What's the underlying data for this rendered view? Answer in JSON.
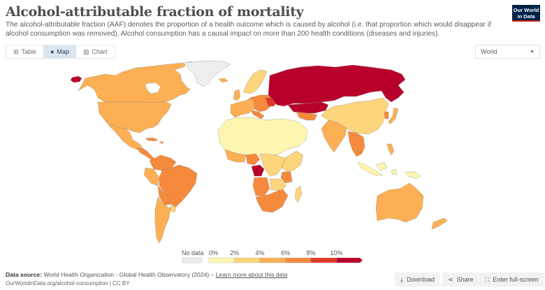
{
  "header": {
    "title": "Alcohol-attributable fraction of mortality",
    "subtitle": "The alcohol-attributable fraction (AAF) denotes the proportion of a health outcome which is caused by alcohol (i.e. that proportion which would disappear if alcohol consumption was removed). Alcohol consumption has a causal impact on more than 200 health conditions (diseases and injuries).",
    "logo_line1": "Our World",
    "logo_line2": "in Data"
  },
  "tabs": [
    {
      "label": "Table",
      "icon": "table-icon",
      "glyph": "⊞",
      "active": false
    },
    {
      "label": "Map",
      "icon": "globe-icon",
      "glyph": "●",
      "active": true
    },
    {
      "label": "Chart",
      "icon": "chart-icon",
      "glyph": "▥",
      "active": false
    }
  ],
  "region_select": {
    "value": "World",
    "caret": "▼"
  },
  "legend": {
    "no_data_label": "No data",
    "ticks": [
      "0%",
      "2%",
      "4%",
      "6%",
      "8%",
      "10%"
    ],
    "colors": [
      "#fef5b0",
      "#fdd57a",
      "#fcb053",
      "#f68a3c",
      "#e03a27",
      "#b8002b"
    ],
    "no_data_color": "#e8e8e8"
  },
  "chart_data": {
    "type": "choropleth",
    "title": "Alcohol-attributable fraction of mortality",
    "bins": [
      {
        "range": "0-2%",
        "color": "#fef5b0"
      },
      {
        "range": "2-4%",
        "color": "#fdd57a"
      },
      {
        "range": "4-6%",
        "color": "#fcb053"
      },
      {
        "range": "6-8%",
        "color": "#f68a3c"
      },
      {
        "range": "8-10%",
        "color": "#e03a27"
      },
      {
        "range": ">10%",
        "color": "#b8002b"
      }
    ],
    "regions": [
      {
        "name": "Alaska (Far east Russia tip)",
        "bin": 5
      },
      {
        "name": "Canada",
        "bin": 2
      },
      {
        "name": "United States",
        "bin": 2
      },
      {
        "name": "Mexico",
        "bin": 2
      },
      {
        "name": "Central America",
        "bin": 3
      },
      {
        "name": "Greenland",
        "bin": -1
      },
      {
        "name": "Iceland",
        "bin": 2
      },
      {
        "name": "Western Europe",
        "bin": 2
      },
      {
        "name": "Eastern Europe",
        "bin": 3
      },
      {
        "name": "Belarus / Ukraine",
        "bin": 4
      },
      {
        "name": "Scandinavia",
        "bin": 1
      },
      {
        "name": "Russia",
        "bin": 5
      },
      {
        "name": "Kazakhstan",
        "bin": 5
      },
      {
        "name": "Turkmenistan",
        "bin": 3
      },
      {
        "name": "Mongolia",
        "bin": 5
      },
      {
        "name": "China",
        "bin": 1
      },
      {
        "name": "Korea",
        "bin": 3
      },
      {
        "name": "Japan",
        "bin": 2
      },
      {
        "name": "India",
        "bin": 2
      },
      {
        "name": "Southeast Asia mainland",
        "bin": 3
      },
      {
        "name": "Indonesia",
        "bin": 0
      },
      {
        "name": "Philippines",
        "bin": 2
      },
      {
        "name": "Papua New Guinea",
        "bin": 0
      },
      {
        "name": "Australia",
        "bin": 2
      },
      {
        "name": "New Zealand",
        "bin": 2
      },
      {
        "name": "North Africa",
        "bin": 0
      },
      {
        "name": "Middle East",
        "bin": 0
      },
      {
        "name": "West Africa coast",
        "bin": 2
      },
      {
        "name": "Nigeria",
        "bin": 3
      },
      {
        "name": "Central Africa",
        "bin": 1
      },
      {
        "name": "Gabon / Congo",
        "bin": 5
      },
      {
        "name": "East Africa",
        "bin": 1
      },
      {
        "name": "Tanzania",
        "bin": 3
      },
      {
        "name": "Angola",
        "bin": 3
      },
      {
        "name": "Southern Africa",
        "bin": 3
      },
      {
        "name": "Madagascar",
        "bin": 1
      },
      {
        "name": "Brazil",
        "bin": 3
      },
      {
        "name": "Northern South America",
        "bin": 3
      },
      {
        "name": "Peru / Ecuador",
        "bin": 2
      },
      {
        "name": "Bolivia / Paraguay",
        "bin": 3
      },
      {
        "name": "Argentina / Chile",
        "bin": 2
      },
      {
        "name": "Uruguay",
        "bin": 1
      }
    ]
  },
  "footer": {
    "source_label": "Data source:",
    "source_text": "World Health Organization - Global Health Observatory (2024) –",
    "learn_more": "Learn more about this data",
    "url": "OurWorldinData.org/alcohol-consumption | CC BY",
    "download_label": "Download",
    "share_label": "Share",
    "fullscreen_label": "Enter full-screen"
  }
}
